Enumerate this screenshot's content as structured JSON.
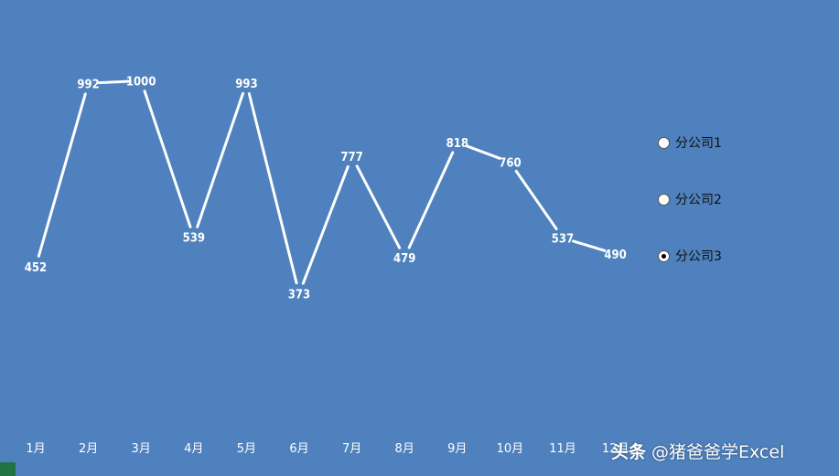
{
  "colors": {
    "background": "#4E81BD",
    "line": "#FFFFFF",
    "droplines": "#FFFFFF",
    "label": "#FFFFFF",
    "corner_tab": "#217346"
  },
  "chart_data": {
    "type": "line",
    "categories": [
      "1月",
      "2月",
      "3月",
      "4月",
      "5月",
      "6月",
      "7月",
      "8月",
      "9月",
      "10月",
      "11月",
      "12月"
    ],
    "series": [
      {
        "values": [
          452,
          992,
          1000,
          539,
          993,
          373,
          777,
          479,
          818,
          760,
          537,
          490
        ]
      }
    ],
    "ylim": [
      0,
      1130
    ],
    "data_labels": true,
    "drop_lines": true,
    "grid": false,
    "legend": "none"
  },
  "selector": {
    "options": [
      {
        "label": "分公司1",
        "checked": false
      },
      {
        "label": "分公司2",
        "checked": false
      },
      {
        "label": "分公司3",
        "checked": true
      }
    ]
  },
  "watermark": {
    "brand": "头条",
    "handle": "@猪爸爸学Excel"
  }
}
